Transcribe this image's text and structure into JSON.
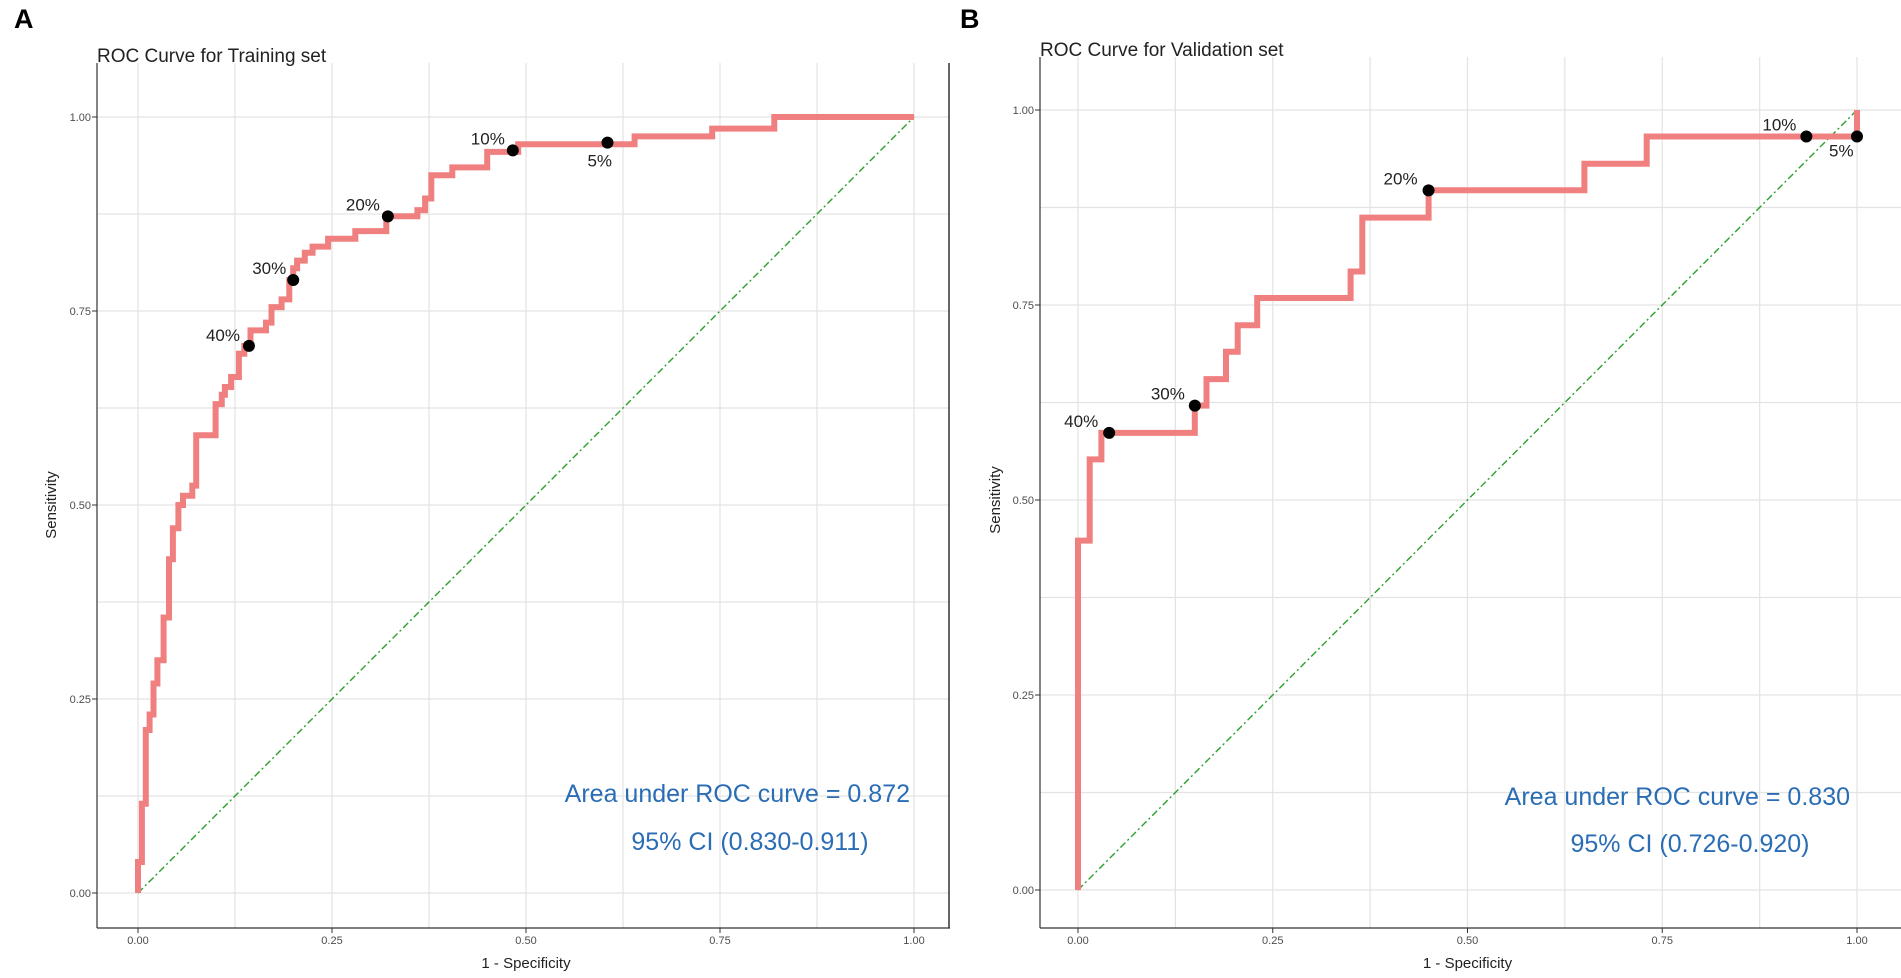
{
  "chart_data": [
    {
      "panel": "A",
      "type": "line",
      "title": "ROC Curve for Training set",
      "xlabel": "1 - Specificity",
      "ylabel": "Sensitivity",
      "xlim": [
        0,
        1
      ],
      "ylim": [
        0,
        1
      ],
      "xticks": [
        "0.00",
        "0.25",
        "0.50",
        "0.75",
        "1.00"
      ],
      "yticks": [
        "0.00",
        "0.25",
        "0.50",
        "0.75",
        "1.00"
      ],
      "grid": true,
      "series": [
        {
          "name": "ROC",
          "color": "#f08080",
          "points": [
            [
              0.0,
              0.0
            ],
            [
              0.0,
              0.04
            ],
            [
              0.005,
              0.04
            ],
            [
              0.005,
              0.115
            ],
            [
              0.01,
              0.115
            ],
            [
              0.01,
              0.21
            ],
            [
              0.015,
              0.21
            ],
            [
              0.015,
              0.23
            ],
            [
              0.02,
              0.23
            ],
            [
              0.02,
              0.27
            ],
            [
              0.025,
              0.27
            ],
            [
              0.025,
              0.3
            ],
            [
              0.033,
              0.3
            ],
            [
              0.033,
              0.355
            ],
            [
              0.04,
              0.355
            ],
            [
              0.04,
              0.43
            ],
            [
              0.045,
              0.43
            ],
            [
              0.045,
              0.47
            ],
            [
              0.052,
              0.47
            ],
            [
              0.052,
              0.5
            ],
            [
              0.058,
              0.5
            ],
            [
              0.058,
              0.512
            ],
            [
              0.07,
              0.512
            ],
            [
              0.07,
              0.525
            ],
            [
              0.075,
              0.525
            ],
            [
              0.075,
              0.59
            ],
            [
              0.1,
              0.59
            ],
            [
              0.1,
              0.63
            ],
            [
              0.108,
              0.63
            ],
            [
              0.108,
              0.642
            ],
            [
              0.112,
              0.642
            ],
            [
              0.112,
              0.652
            ],
            [
              0.12,
              0.652
            ],
            [
              0.12,
              0.665
            ],
            [
              0.13,
              0.665
            ],
            [
              0.13,
              0.695
            ],
            [
              0.137,
              0.695
            ],
            [
              0.137,
              0.705
            ],
            [
              0.145,
              0.705
            ],
            [
              0.145,
              0.725
            ],
            [
              0.165,
              0.725
            ],
            [
              0.165,
              0.735
            ],
            [
              0.172,
              0.735
            ],
            [
              0.172,
              0.755
            ],
            [
              0.185,
              0.755
            ],
            [
              0.185,
              0.765
            ],
            [
              0.195,
              0.765
            ],
            [
              0.195,
              0.79
            ],
            [
              0.2,
              0.79
            ],
            [
              0.2,
              0.805
            ],
            [
              0.205,
              0.805
            ],
            [
              0.205,
              0.815
            ],
            [
              0.215,
              0.815
            ],
            [
              0.215,
              0.825
            ],
            [
              0.225,
              0.825
            ],
            [
              0.225,
              0.833
            ],
            [
              0.245,
              0.833
            ],
            [
              0.245,
              0.843
            ],
            [
              0.28,
              0.843
            ],
            [
              0.28,
              0.853
            ],
            [
              0.32,
              0.853
            ],
            [
              0.32,
              0.872
            ],
            [
              0.36,
              0.872
            ],
            [
              0.36,
              0.88
            ],
            [
              0.37,
              0.88
            ],
            [
              0.37,
              0.895
            ],
            [
              0.378,
              0.895
            ],
            [
              0.378,
              0.925
            ],
            [
              0.405,
              0.925
            ],
            [
              0.405,
              0.935
            ],
            [
              0.45,
              0.935
            ],
            [
              0.45,
              0.955
            ],
            [
              0.49,
              0.955
            ],
            [
              0.49,
              0.965
            ],
            [
              0.64,
              0.965
            ],
            [
              0.64,
              0.975
            ],
            [
              0.74,
              0.975
            ],
            [
              0.74,
              0.985
            ],
            [
              0.82,
              0.985
            ],
            [
              0.82,
              1.0
            ],
            [
              1.0,
              1.0
            ]
          ]
        }
      ],
      "reference_line": [
        [
          0,
          0
        ],
        [
          1,
          1
        ]
      ],
      "threshold_points": [
        {
          "label": "40%",
          "x": 0.143,
          "y": 0.705
        },
        {
          "label": "30%",
          "x": 0.2,
          "y": 0.79
        },
        {
          "label": "20%",
          "x": 0.322,
          "y": 0.872
        },
        {
          "label": "10%",
          "x": 0.483,
          "y": 0.957
        },
        {
          "label": "5%",
          "x": 0.605,
          "y": 0.967
        }
      ],
      "annotations": [
        "Area under ROC curve = 0.872",
        "95% CI (0.830-0.911)"
      ]
    },
    {
      "panel": "B",
      "type": "line",
      "title": "ROC Curve for Validation set",
      "xlabel": "1 - Specificity",
      "ylabel": "Sensitivity",
      "xlim": [
        0,
        1
      ],
      "ylim": [
        0,
        1
      ],
      "xticks": [
        "0.00",
        "0.25",
        "0.50",
        "0.75",
        "1.00"
      ],
      "yticks": [
        "0.00",
        "0.25",
        "0.50",
        "0.75",
        "1.00"
      ],
      "grid": true,
      "series": [
        {
          "name": "ROC",
          "color": "#f08080",
          "points": [
            [
              0.0,
              0.0
            ],
            [
              0.0,
              0.448
            ],
            [
              0.015,
              0.448
            ],
            [
              0.015,
              0.552
            ],
            [
              0.03,
              0.552
            ],
            [
              0.03,
              0.586
            ],
            [
              0.15,
              0.586
            ],
            [
              0.15,
              0.621
            ],
            [
              0.165,
              0.621
            ],
            [
              0.165,
              0.655
            ],
            [
              0.19,
              0.655
            ],
            [
              0.19,
              0.69
            ],
            [
              0.205,
              0.69
            ],
            [
              0.205,
              0.724
            ],
            [
              0.23,
              0.724
            ],
            [
              0.23,
              0.759
            ],
            [
              0.35,
              0.759
            ],
            [
              0.35,
              0.793
            ],
            [
              0.365,
              0.793
            ],
            [
              0.365,
              0.862
            ],
            [
              0.45,
              0.862
            ],
            [
              0.45,
              0.897
            ],
            [
              0.65,
              0.897
            ],
            [
              0.65,
              0.931
            ],
            [
              0.73,
              0.931
            ],
            [
              0.73,
              0.966
            ],
            [
              1.0,
              0.966
            ],
            [
              1.0,
              1.0
            ]
          ]
        }
      ],
      "reference_line": [
        [
          0,
          0
        ],
        [
          1,
          1
        ]
      ],
      "threshold_points": [
        {
          "label": "40%",
          "x": 0.04,
          "y": 0.586
        },
        {
          "label": "30%",
          "x": 0.15,
          "y": 0.621
        },
        {
          "label": "20%",
          "x": 0.45,
          "y": 0.897
        },
        {
          "label": "10%",
          "x": 0.935,
          "y": 0.966
        },
        {
          "label": "5%",
          "x": 1.0,
          "y": 0.966
        }
      ],
      "annotations": [
        "Area under ROC curve = 0.830",
        "95% CI (0.726-0.920)"
      ]
    }
  ]
}
